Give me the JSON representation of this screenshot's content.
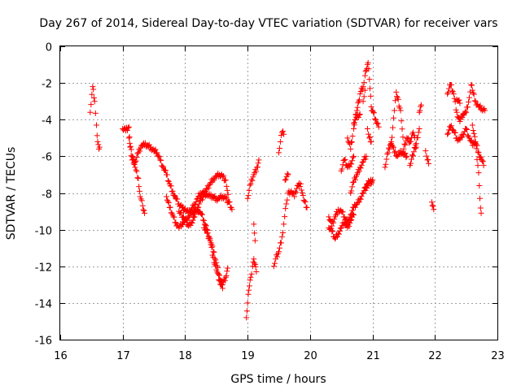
{
  "chart_data": {
    "type": "scatter",
    "title": "Day 267 of 2014, Sidereal Day-to-day VTEC variation (SDTVAR) for receiver vars",
    "xlabel": "GPS time / hours",
    "ylabel": "SDTVAR / TECUs",
    "xlim": [
      16,
      23
    ],
    "ylim": [
      -16,
      0
    ],
    "xticks": [
      "16",
      "17",
      "18",
      "19",
      "20",
      "21",
      "22",
      "23"
    ],
    "yticks": [
      "0",
      "-2",
      "-4",
      "-6",
      "-8",
      "-10",
      "-12",
      "-14",
      "-16"
    ],
    "grid": true,
    "marker": "+",
    "color": "#ff0000",
    "series": [
      {
        "name": "vars",
        "segments": [
          [
            [
              16.48,
              -3.6
            ],
            [
              16.52,
              -2.2
            ],
            [
              16.55,
              -3.0
            ],
            [
              16.58,
              -4.3
            ],
            [
              16.6,
              -5.2
            ],
            [
              16.62,
              -5.6
            ],
            [
              16.63,
              -5.5
            ]
          ],
          [
            [
              17.0,
              -4.5
            ],
            [
              17.05,
              -4.6
            ],
            [
              17.1,
              -4.4
            ],
            [
              17.12,
              -5.5
            ],
            [
              17.15,
              -6.2
            ],
            [
              17.2,
              -6.3
            ],
            [
              17.25,
              -5.8
            ],
            [
              17.3,
              -5.4
            ],
            [
              17.35,
              -5.4
            ],
            [
              17.4,
              -5.4
            ],
            [
              17.45,
              -5.5
            ],
            [
              17.5,
              -5.7
            ],
            [
              17.55,
              -5.8
            ],
            [
              17.6,
              -6.2
            ],
            [
              17.65,
              -6.6
            ],
            [
              17.7,
              -7.0
            ],
            [
              17.75,
              -7.5
            ],
            [
              17.8,
              -7.9
            ],
            [
              17.85,
              -8.3
            ],
            [
              17.9,
              -8.6
            ],
            [
              17.95,
              -8.8
            ],
            [
              18.0,
              -8.9
            ],
            [
              18.05,
              -9.1
            ],
            [
              18.1,
              -8.9
            ],
            [
              18.15,
              -8.6
            ],
            [
              18.2,
              -8.3
            ],
            [
              18.25,
              -8.0
            ],
            [
              18.3,
              -8.0
            ],
            [
              18.35,
              -8.1
            ],
            [
              18.4,
              -8.2
            ],
            [
              18.45,
              -8.2
            ],
            [
              18.5,
              -8.3
            ],
            [
              18.55,
              -8.3
            ],
            [
              18.6,
              -8.2
            ],
            [
              18.65,
              -8.3
            ],
            [
              18.7,
              -8.5
            ]
          ],
          [
            [
              17.1,
              -5.0
            ],
            [
              17.15,
              -6.0
            ],
            [
              17.2,
              -6.6
            ],
            [
              17.25,
              -7.2
            ],
            [
              17.28,
              -8.2
            ],
            [
              17.32,
              -8.7
            ],
            [
              17.35,
              -9.1
            ]
          ],
          [
            [
              17.7,
              -8.2
            ],
            [
              17.75,
              -8.8
            ],
            [
              17.8,
              -9.2
            ],
            [
              17.85,
              -9.6
            ],
            [
              17.9,
              -9.9
            ],
            [
              17.95,
              -9.7
            ],
            [
              18.0,
              -9.5
            ],
            [
              18.05,
              -9.3
            ],
            [
              18.1,
              -9.2
            ],
            [
              18.15,
              -9.0
            ],
            [
              18.2,
              -8.9
            ],
            [
              18.25,
              -9.1
            ],
            [
              18.3,
              -9.5
            ],
            [
              18.35,
              -10.0
            ],
            [
              18.4,
              -10.5
            ],
            [
              18.45,
              -11.2
            ],
            [
              18.5,
              -11.8
            ],
            [
              18.55,
              -12.5
            ],
            [
              18.6,
              -13.0
            ],
            [
              18.65,
              -12.6
            ],
            [
              18.68,
              -12.1
            ]
          ],
          [
            [
              17.9,
              -9.0
            ],
            [
              18.0,
              -9.5
            ],
            [
              18.05,
              -9.8
            ],
            [
              18.1,
              -9.6
            ],
            [
              18.15,
              -9.3
            ],
            [
              18.2,
              -8.8
            ],
            [
              18.25,
              -8.4
            ],
            [
              18.3,
              -8.1
            ],
            [
              18.35,
              -7.8
            ],
            [
              18.4,
              -7.5
            ],
            [
              18.45,
              -7.2
            ],
            [
              18.5,
              -7.1
            ],
            [
              18.55,
              -7.0
            ],
            [
              18.6,
              -7.1
            ],
            [
              18.65,
              -7.3
            ],
            [
              18.7,
              -8.5
            ],
            [
              18.75,
              -8.9
            ]
          ],
          [
            [
              18.3,
              -9.9
            ],
            [
              18.35,
              -10.2
            ],
            [
              18.4,
              -10.6
            ],
            [
              18.45,
              -11.5
            ],
            [
              18.5,
              -12.2
            ],
            [
              18.55,
              -12.8
            ],
            [
              18.6,
              -13.2
            ]
          ],
          [
            [
              18.98,
              -14.8
            ],
            [
              19.0,
              -14.0
            ],
            [
              19.02,
              -13.3
            ],
            [
              19.05,
              -12.6
            ],
            [
              19.08,
              -12.0
            ],
            [
              19.1,
              -11.6
            ],
            [
              19.12,
              -11.9
            ],
            [
              19.14,
              -12.3
            ]
          ],
          [
            [
              19.0,
              -8.3
            ],
            [
              19.05,
              -7.5
            ],
            [
              19.1,
              -7.0
            ],
            [
              19.15,
              -6.6
            ],
            [
              19.18,
              -6.2
            ]
          ],
          [
            [
              19.1,
              -9.7
            ],
            [
              19.12,
              -10.6
            ]
          ],
          [
            [
              19.42,
              -12.0
            ],
            [
              19.45,
              -11.6
            ],
            [
              19.5,
              -11.2
            ],
            [
              19.55,
              -10.4
            ],
            [
              19.58,
              -9.7
            ],
            [
              19.62,
              -8.6
            ],
            [
              19.65,
              -8.0
            ],
            [
              19.7,
              -7.9
            ],
            [
              19.75,
              -8.2
            ],
            [
              19.8,
              -7.6
            ],
            [
              19.85,
              -7.5
            ],
            [
              19.9,
              -8.4
            ],
            [
              19.95,
              -8.8
            ]
          ],
          [
            [
              19.5,
              -5.8
            ],
            [
              19.55,
              -4.7
            ],
            [
              19.58,
              -4.8
            ]
          ],
          [
            [
              19.6,
              -7.3
            ],
            [
              19.65,
              -7.0
            ]
          ],
          [
            [
              20.3,
              -9.3
            ],
            [
              20.35,
              -9.8
            ],
            [
              20.4,
              -9.3
            ],
            [
              20.45,
              -8.9
            ],
            [
              20.5,
              -9.0
            ],
            [
              20.55,
              -9.3
            ],
            [
              20.6,
              -9.6
            ],
            [
              20.65,
              -9.2
            ],
            [
              20.7,
              -8.8
            ],
            [
              20.75,
              -8.6
            ],
            [
              20.8,
              -8.3
            ],
            [
              20.85,
              -8.0
            ],
            [
              20.9,
              -7.7
            ],
            [
              20.95,
              -7.5
            ],
            [
              21.0,
              -7.3
            ]
          ],
          [
            [
              20.3,
              -9.9
            ],
            [
              20.35,
              -10.1
            ],
            [
              20.4,
              -10.5
            ],
            [
              20.45,
              -10.2
            ],
            [
              20.5,
              -9.9
            ],
            [
              20.55,
              -9.6
            ],
            [
              20.6,
              -9.9
            ],
            [
              20.65,
              -9.5
            ],
            [
              20.7,
              -9.2
            ]
          ],
          [
            [
              20.5,
              -6.8
            ],
            [
              20.55,
              -6.2
            ],
            [
              20.6,
              -6.6
            ],
            [
              20.65,
              -6.4
            ],
            [
              20.7,
              -6.0
            ]
          ],
          [
            [
              20.6,
              -5.0
            ],
            [
              20.65,
              -5.6
            ],
            [
              20.68,
              -4.9
            ]
          ],
          [
            [
              20.65,
              -8.0
            ],
            [
              20.7,
              -7.4
            ],
            [
              20.75,
              -7.0
            ],
            [
              20.8,
              -6.6
            ],
            [
              20.85,
              -6.3
            ],
            [
              20.9,
              -6.0
            ]
          ],
          [
            [
              20.7,
              -4.5
            ],
            [
              20.72,
              -4.0
            ],
            [
              20.75,
              -3.5
            ],
            [
              20.78,
              -3.0
            ],
            [
              20.8,
              -2.6
            ],
            [
              20.85,
              -2.2
            ],
            [
              20.88,
              -1.6
            ],
            [
              20.9,
              -1.3
            ],
            [
              20.93,
              -0.9
            ],
            [
              20.95,
              -1.8
            ],
            [
              20.98,
              -3.3
            ],
            [
              21.0,
              -3.5
            ],
            [
              21.05,
              -4.0
            ],
            [
              21.1,
              -4.4
            ]
          ],
          [
            [
              20.7,
              -4.2
            ],
            [
              20.75,
              -3.9
            ],
            [
              20.8,
              -3.7
            ]
          ],
          [
            [
              20.85,
              -3.0
            ],
            [
              20.88,
              -2.4
            ]
          ],
          [
            [
              20.88,
              -7.7
            ],
            [
              20.92,
              -7.5
            ],
            [
              20.95,
              -7.4
            ],
            [
              21.0,
              -7.3
            ]
          ],
          [
            [
              20.92,
              -4.5
            ],
            [
              20.95,
              -5.0
            ],
            [
              20.98,
              -5.2
            ]
          ],
          [
            [
              21.2,
              -6.6
            ],
            [
              21.25,
              -5.8
            ],
            [
              21.28,
              -5.4
            ],
            [
              21.3,
              -5.3
            ],
            [
              21.35,
              -3.5
            ],
            [
              21.38,
              -2.5
            ],
            [
              21.4,
              -2.8
            ],
            [
              21.45,
              -3.5
            ],
            [
              21.5,
              -5.6
            ],
            [
              21.55,
              -5.0
            ],
            [
              21.6,
              -5.2
            ],
            [
              21.65,
              -4.7
            ],
            [
              21.7,
              -5.5
            ]
          ],
          [
            [
              21.3,
              -5.2
            ],
            [
              21.35,
              -5.8
            ],
            [
              21.4,
              -6.0
            ],
            [
              21.45,
              -5.7
            ],
            [
              21.5,
              -5.9
            ],
            [
              21.55,
              -6.0
            ]
          ],
          [
            [
              21.6,
              -6.5
            ],
            [
              21.7,
              -5.3
            ],
            [
              21.75,
              -4.5
            ]
          ],
          [
            [
              21.75,
              -3.6
            ],
            [
              21.78,
              -3.2
            ]
          ],
          [
            [
              21.85,
              -5.7
            ],
            [
              21.88,
              -6.2
            ],
            [
              21.9,
              -6.4
            ]
          ],
          [
            [
              21.95,
              -8.5
            ],
            [
              21.98,
              -8.9
            ]
          ],
          [
            [
              22.2,
              -2.6
            ],
            [
              22.25,
              -2.1
            ],
            [
              22.3,
              -2.6
            ],
            [
              22.35,
              -3.6
            ],
            [
              22.4,
              -4.1
            ],
            [
              22.45,
              -3.7
            ],
            [
              22.5,
              -3.6
            ],
            [
              22.55,
              -2.8
            ],
            [
              22.58,
              -2.1
            ],
            [
              22.6,
              -2.4
            ],
            [
              22.65,
              -3.0
            ],
            [
              22.7,
              -3.3
            ],
            [
              22.75,
              -3.4
            ],
            [
              22.8,
              -3.5
            ]
          ],
          [
            [
              22.2,
              -4.8
            ],
            [
              22.25,
              -4.4
            ],
            [
              22.3,
              -4.6
            ],
            [
              22.35,
              -5.0
            ],
            [
              22.4,
              -5.1
            ],
            [
              22.45,
              -4.8
            ],
            [
              22.5,
              -4.5
            ],
            [
              22.55,
              -5.0
            ],
            [
              22.6,
              -5.4
            ],
            [
              22.65,
              -5.2
            ],
            [
              22.7,
              -5.8
            ],
            [
              22.75,
              -6.2
            ],
            [
              22.78,
              -6.5
            ]
          ],
          [
            [
              22.6,
              -4.3
            ],
            [
              22.65,
              -5.3
            ],
            [
              22.7,
              -6.9
            ],
            [
              22.72,
              -8.3
            ],
            [
              22.74,
              -9.1
            ]
          ],
          [
            [
              22.35,
              -2.9
            ],
            [
              22.4,
              -3.1
            ]
          ]
        ]
      }
    ]
  }
}
